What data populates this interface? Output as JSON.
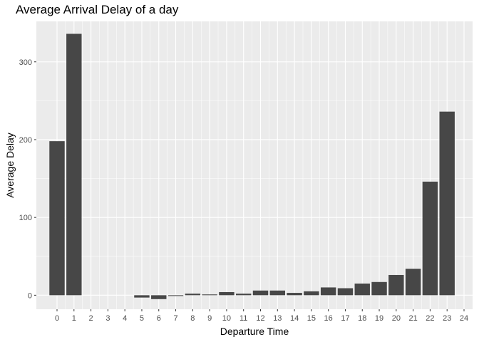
{
  "chart_data": {
    "type": "bar",
    "title": "Average Arrival Delay of a day",
    "xlabel": "Departure Time",
    "ylabel": "Average Delay",
    "categories": [
      "0",
      "1",
      "2",
      "3",
      "4",
      "5",
      "6",
      "7",
      "8",
      "9",
      "10",
      "11",
      "12",
      "13",
      "14",
      "15",
      "16",
      "17",
      "18",
      "19",
      "20",
      "21",
      "22",
      "23",
      "24"
    ],
    "values": [
      198,
      336,
      null,
      null,
      null,
      -3,
      -5,
      -1,
      2,
      1,
      4,
      2,
      6,
      6,
      3,
      5,
      10,
      9,
      15,
      17,
      26,
      34,
      146,
      236,
      null
    ],
    "ylim": [
      -18,
      352
    ],
    "yticks": [
      0,
      100,
      200,
      300
    ],
    "grid": true,
    "bar_color": "#474747",
    "panel_color": "#ebebeb",
    "grid_color": "#ffffff"
  }
}
